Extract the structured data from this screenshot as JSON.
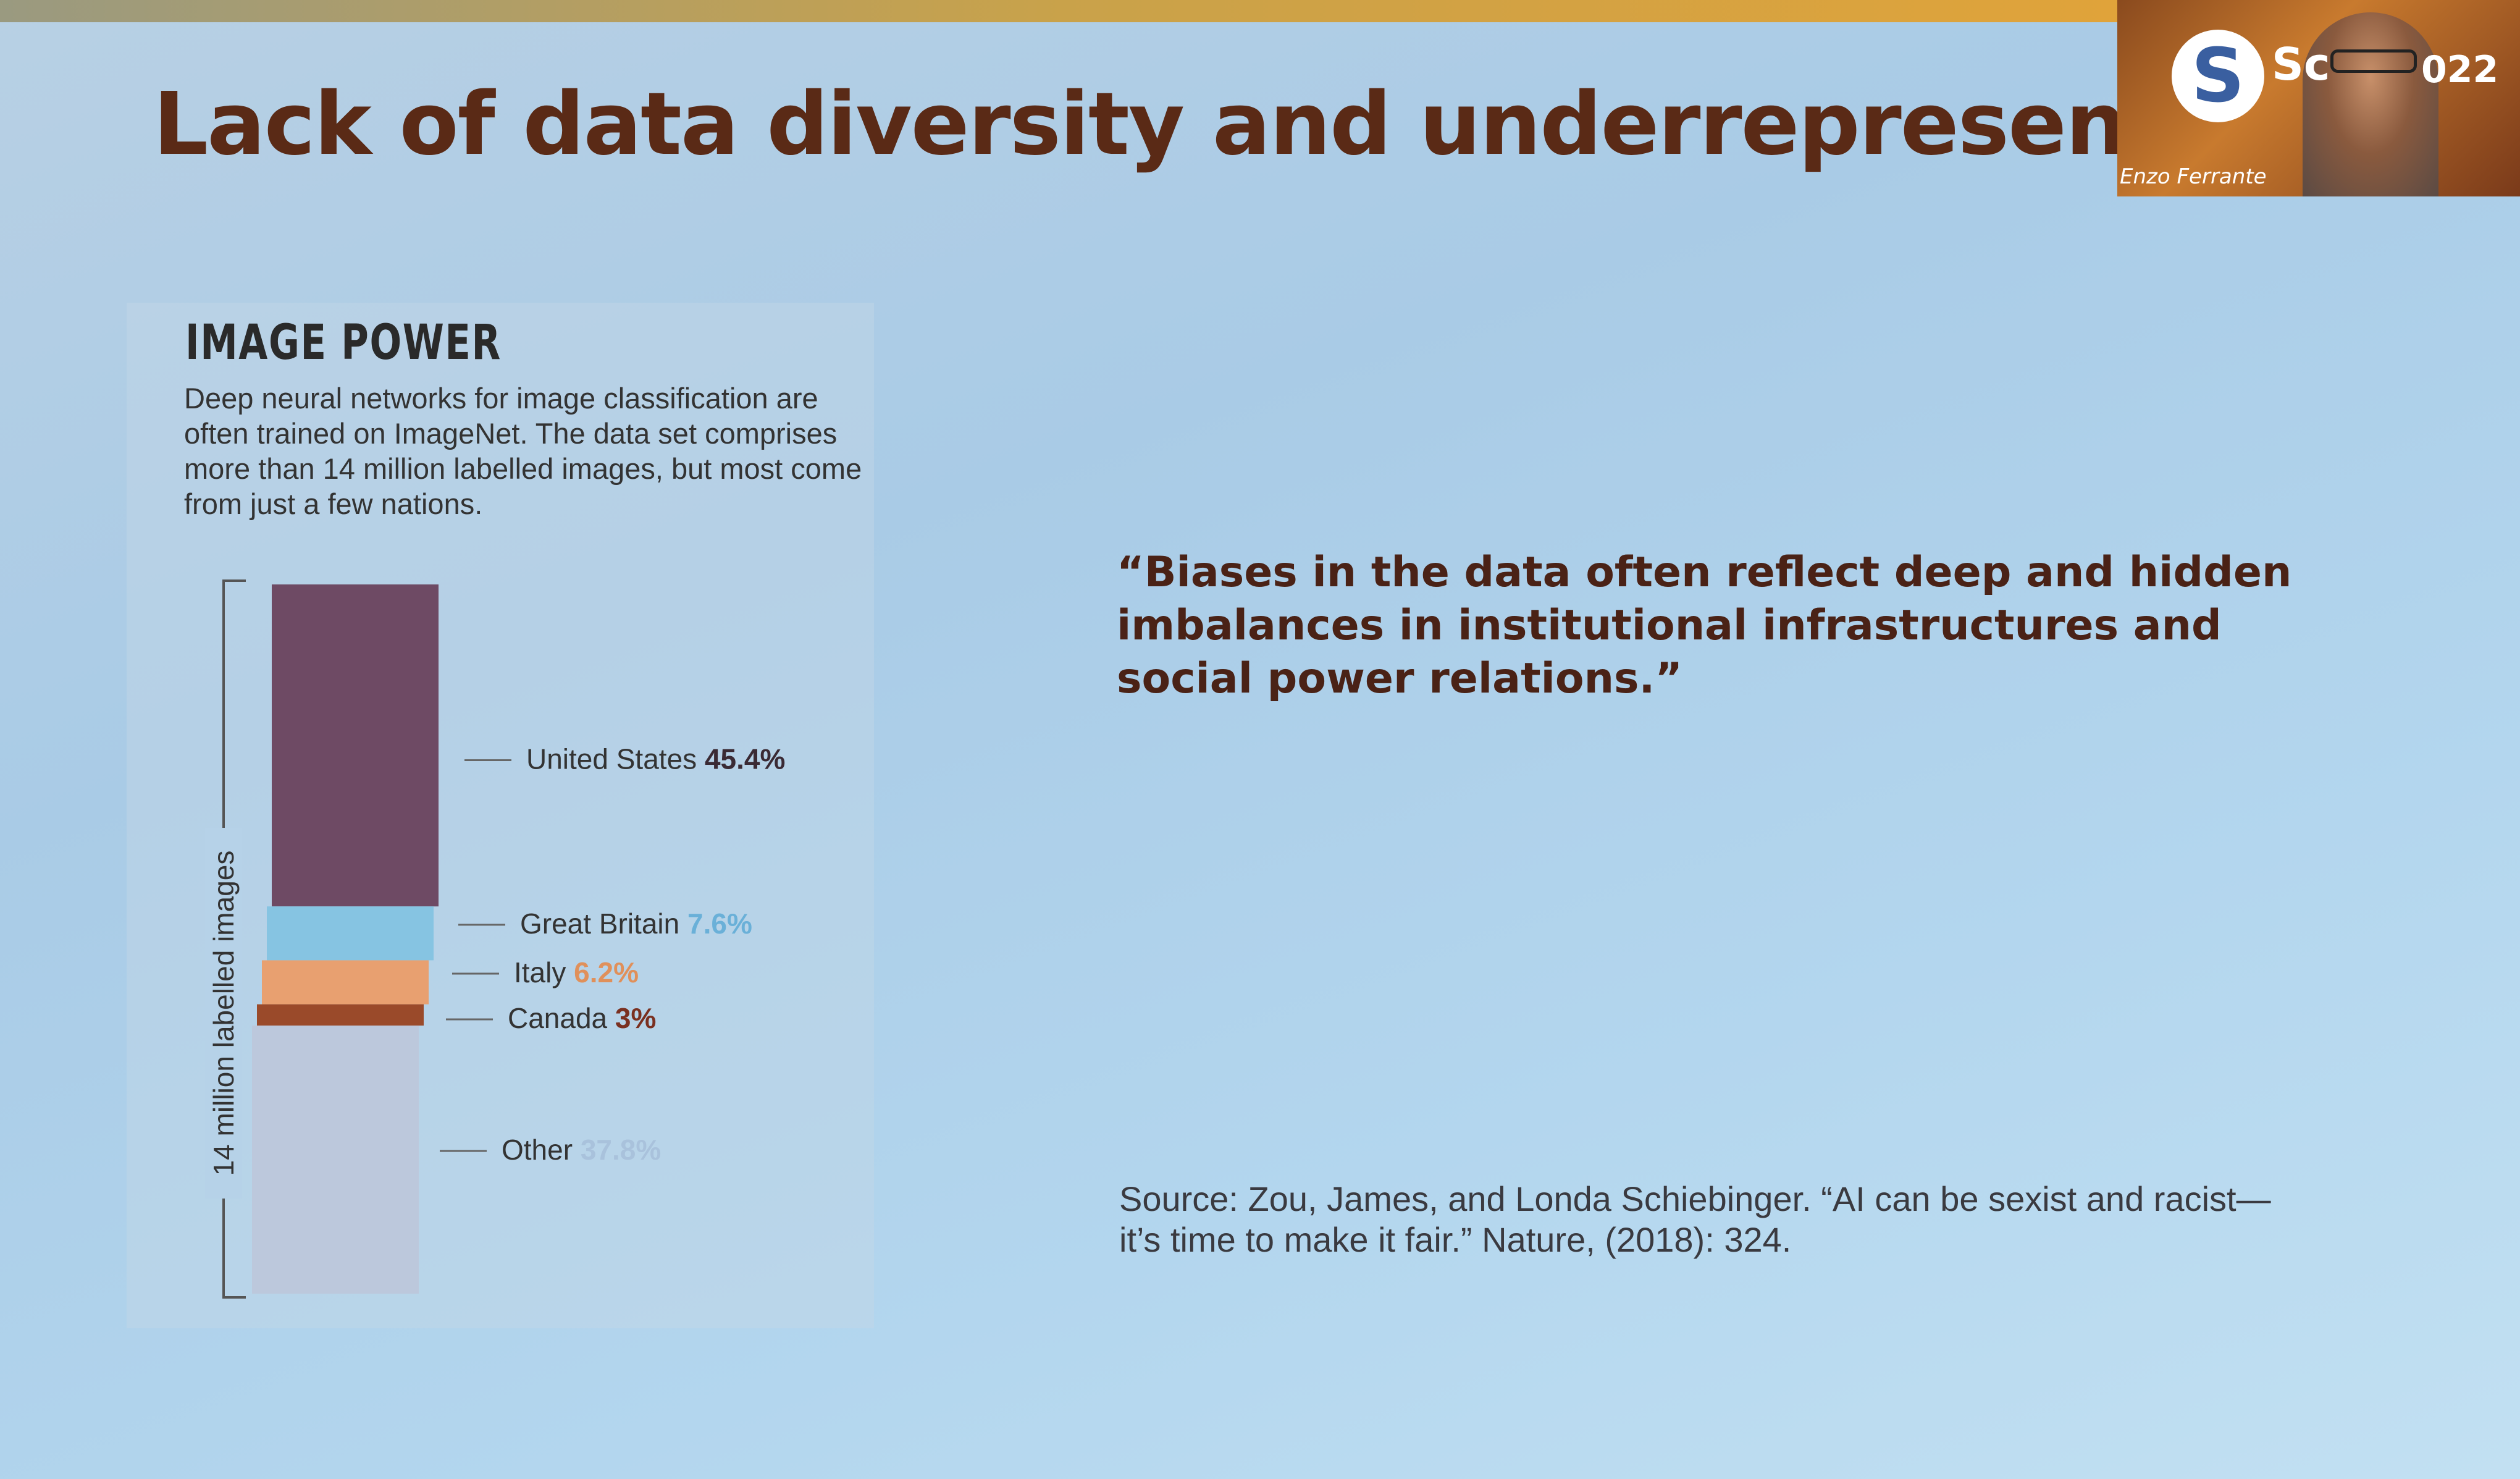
{
  "slide": {
    "title": "Lack of data diversity and underrepresentation",
    "quote": "“Biases in the data often reflect deep and hidden imbalances in institutional infrastructures and social power relations.”",
    "source": "Source: Zou, James, and Londa Schiebinger. “AI can be sexist and racist—it’s time to make it fair.” Nature, (2018): 324."
  },
  "webcam": {
    "logo_text": "Sc",
    "logo_year": "022",
    "speaker_name": "Enzo Ferrante"
  },
  "chart_data": {
    "type": "bar",
    "title": "IMAGE POWER",
    "subtitle": "Deep neural networks for image classification are often trained on ImageNet. The data set comprises more than 14 million labelled images, but most come from just a few nations.",
    "ylabel": "14 million labelled images",
    "stacked": true,
    "unit": "%",
    "series": [
      {
        "name": "United States",
        "value": 45.4,
        "label": "45.4%",
        "color": "#6e4a64",
        "value_color": "#3a2a34"
      },
      {
        "name": "Great Britain",
        "value": 7.6,
        "label": "7.6%",
        "color": "#86c4e2",
        "value_color": "#6ab0d8"
      },
      {
        "name": "Italy",
        "value": 6.2,
        "label": "6.2%",
        "color": "#e8a070",
        "value_color": "#e0905a"
      },
      {
        "name": "Canada",
        "value": 3,
        "label": "3%",
        "color": "#9a4a2a",
        "value_color": "#7a3020"
      },
      {
        "name": "Other",
        "value": 37.8,
        "label": "37.8%",
        "color": "#bcc8dc",
        "value_color": "#a9c2dc"
      }
    ]
  }
}
